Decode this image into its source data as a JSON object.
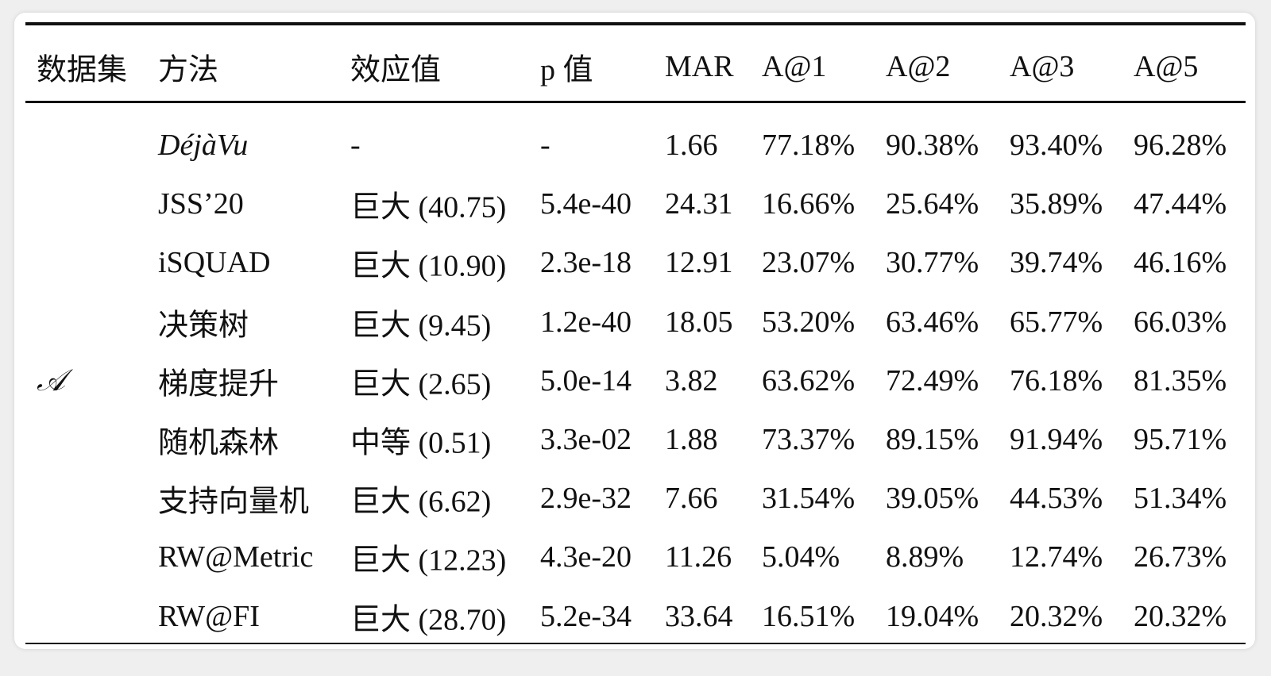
{
  "table": {
    "header": [
      "数据集",
      "方法",
      "效应值",
      "p 值",
      "MAR",
      "A@1",
      "A@2",
      "A@3",
      "A@5"
    ],
    "dataset": "𝒜",
    "rows": [
      [
        "DéjàVu",
        "-",
        "-",
        "1.66",
        "77.18%",
        "90.38%",
        "93.40%",
        "96.28%"
      ],
      [
        "JSS’20",
        "巨大 (40.75)",
        "5.4e-40",
        "24.31",
        "16.66%",
        "25.64%",
        "35.89%",
        "47.44%"
      ],
      [
        "iSQUAD",
        "巨大 (10.90)",
        "2.3e-18",
        "12.91",
        "23.07%",
        "30.77%",
        "39.74%",
        "46.16%"
      ],
      [
        "决策树",
        "巨大 (9.45)",
        "1.2e-40",
        "18.05",
        "53.20%",
        "63.46%",
        "65.77%",
        "66.03%"
      ],
      [
        "梯度提升",
        "巨大 (2.65)",
        "5.0e-14",
        "3.82",
        "63.62%",
        "72.49%",
        "76.18%",
        "81.35%"
      ],
      [
        "随机森林",
        "中等 (0.51)",
        "3.3e-02",
        "1.88",
        "73.37%",
        "89.15%",
        "91.94%",
        "95.71%"
      ],
      [
        "支持向量机",
        "巨大 (6.62)",
        "2.9e-32",
        "7.66",
        "31.54%",
        "39.05%",
        "44.53%",
        "51.34%"
      ],
      [
        "RW@Metric",
        "巨大 (12.23)",
        "4.3e-20",
        "11.26",
        "5.04%",
        "8.89%",
        "12.74%",
        "26.73%"
      ],
      [
        "RW@FI",
        "巨大 (28.70)",
        "5.2e-34",
        "33.64",
        "16.51%",
        "19.04%",
        "20.32%",
        "20.32%"
      ]
    ]
  }
}
